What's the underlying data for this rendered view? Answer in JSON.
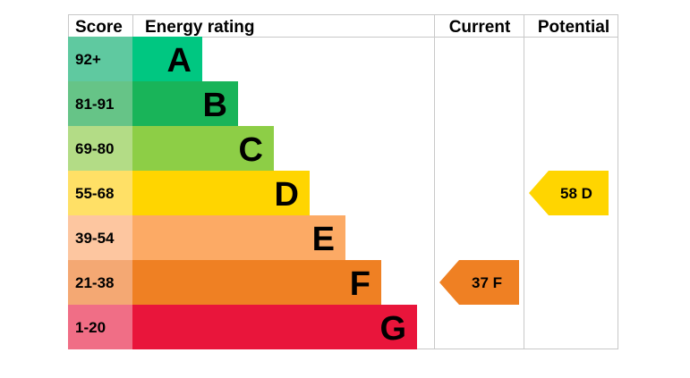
{
  "chart_data": {
    "type": "bar",
    "headers": {
      "score": "Score",
      "rating": "Energy rating",
      "current": "Current",
      "potential": "Potential"
    },
    "bands": [
      {
        "score": "92+",
        "letter": "A",
        "color": "#00c781",
        "score_bg": "#5fc9a0"
      },
      {
        "score": "81-91",
        "letter": "B",
        "color": "#19b459",
        "score_bg": "#66c487"
      },
      {
        "score": "69-80",
        "letter": "C",
        "color": "#8dce46",
        "score_bg": "#b3dc86"
      },
      {
        "score": "55-68",
        "letter": "D",
        "color": "#ffd500",
        "score_bg": "#ffe066"
      },
      {
        "score": "39-54",
        "letter": "E",
        "color": "#fcaa65",
        "score_bg": "#fdc6a0"
      },
      {
        "score": "21-38",
        "letter": "F",
        "color": "#ef8023",
        "score_bg": "#f4a873"
      },
      {
        "score": "1-20",
        "letter": "G",
        "color": "#e9153b",
        "score_bg": "#f06e86"
      }
    ],
    "current": {
      "value": 37,
      "letter": "F",
      "label": "37  F",
      "color": "#ef8023"
    },
    "potential": {
      "value": 58,
      "letter": "D",
      "label": "58  D",
      "color": "#ffd500"
    }
  }
}
